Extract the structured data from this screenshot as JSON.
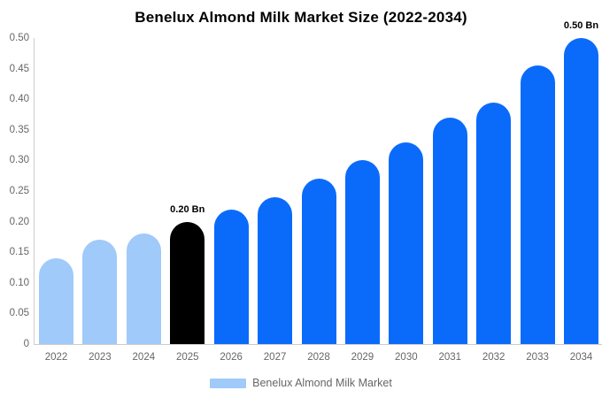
{
  "chart_data": {
    "type": "bar",
    "title": "Benelux Almond Milk Market Size (2022-2034)",
    "unit": "Bn",
    "categories": [
      "2022",
      "2023",
      "2024",
      "2025",
      "2026",
      "2027",
      "2028",
      "2029",
      "2030",
      "2031",
      "2032",
      "2033",
      "2034"
    ],
    "series": [
      {
        "name": "Benelux Almond Milk Market",
        "values": [
          0.14,
          0.17,
          0.18,
          0.2,
          0.22,
          0.24,
          0.27,
          0.3,
          0.33,
          0.37,
          0.395,
          0.455,
          0.5
        ]
      }
    ],
    "bar_colors": [
      "#9fcaf9",
      "#9fcaf9",
      "#9fcaf9",
      "#000000",
      "#0a6bfb",
      "#0a6bfb",
      "#0a6bfb",
      "#0a6bfb",
      "#0a6bfb",
      "#0a6bfb",
      "#0a6bfb",
      "#0a6bfb",
      "#0a6bfb"
    ],
    "annotations": [
      {
        "category": "2025",
        "text": "0.20 Bn"
      },
      {
        "category": "2034",
        "text": "0.50 Bn"
      }
    ],
    "xlabel": "",
    "ylabel": "",
    "ylim": [
      0,
      0.5
    ],
    "ytick_labels": [
      "0.50",
      "0.45",
      "0.40",
      "0.35",
      "0.30",
      "0.25",
      "0.20",
      "0.15",
      "0.10",
      "0.05",
      "0"
    ],
    "grid": false,
    "legend": {
      "position": "bottom",
      "label": "Benelux Almond Milk Market",
      "swatch_color": "#9fcaf9"
    }
  },
  "colors": {
    "background": "#ffffff",
    "axis_line": "#cccccc",
    "tick_text": "#666666",
    "annotation_text": "#000000",
    "bar_historical": "#9fcaf9",
    "bar_base_year": "#000000",
    "bar_forecast": "#0a6bfb"
  }
}
